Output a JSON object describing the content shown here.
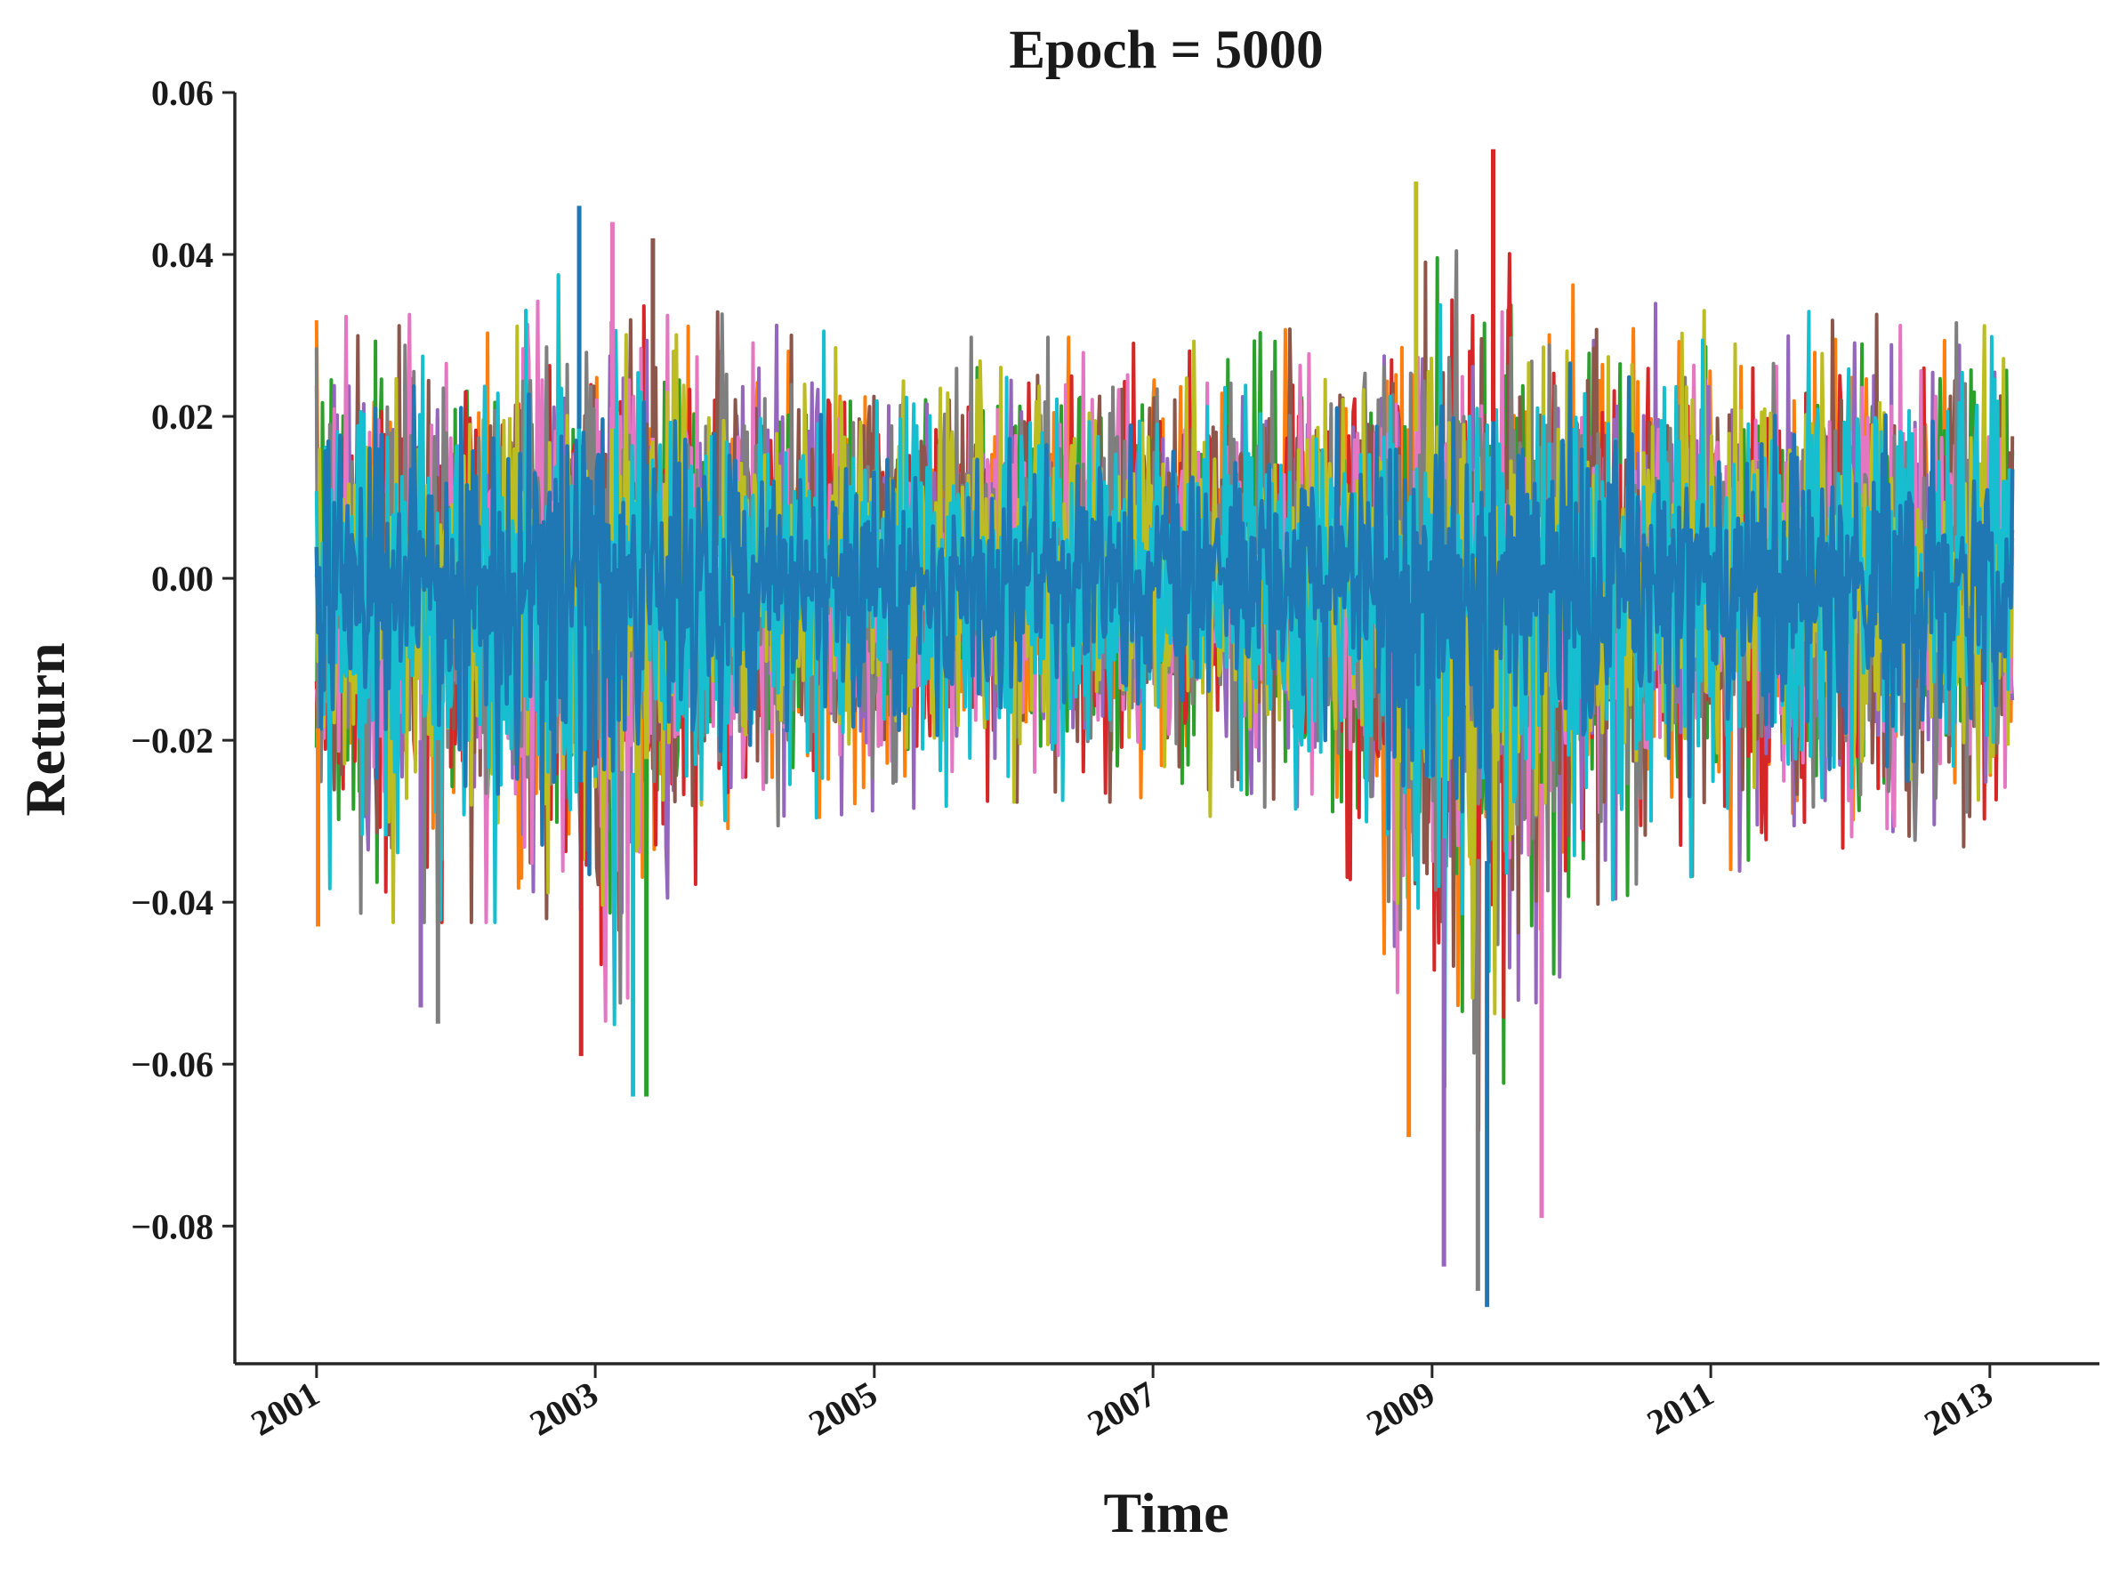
{
  "chart_data": {
    "type": "line",
    "title": "Epoch = 5000",
    "xlabel": "Time",
    "ylabel": "Return",
    "x_range": [
      "2000-06-01",
      "2013-10-15"
    ],
    "ylim": [
      -0.097,
      0.06
    ],
    "x_ticks": [
      {
        "date": "2001-01-01",
        "label": "2001"
      },
      {
        "date": "2003-01-01",
        "label": "2003"
      },
      {
        "date": "2005-01-01",
        "label": "2005"
      },
      {
        "date": "2007-01-01",
        "label": "2007"
      },
      {
        "date": "2009-01-01",
        "label": "2009"
      },
      {
        "date": "2011-01-01",
        "label": "2011"
      },
      {
        "date": "2013-01-01",
        "label": "2013"
      }
    ],
    "y_ticks": [
      {
        "value": 0.06,
        "label": "0.06"
      },
      {
        "value": 0.04,
        "label": "0.04"
      },
      {
        "value": 0.02,
        "label": "0.02"
      },
      {
        "value": 0.0,
        "label": "0.00"
      },
      {
        "value": -0.02,
        "label": "−0.02"
      },
      {
        "value": -0.04,
        "label": "−0.04"
      },
      {
        "value": -0.06,
        "label": "−0.06"
      },
      {
        "value": -0.08,
        "label": "−0.08"
      }
    ],
    "grid": false,
    "series_colors": [
      "#1f77b4",
      "#ff7f0e",
      "#2ca02c",
      "#d62728",
      "#9467bd",
      "#8c564b",
      "#e377c2",
      "#7f7f7f",
      "#bcbd22",
      "#17becf"
    ],
    "date_start": "2001-01-01",
    "date_end": "2013-03-01",
    "volatility_profile": [
      {
        "date": "2001-01-01",
        "upper": 0.03,
        "lower": -0.037
      },
      {
        "date": "2001-07-01",
        "upper": 0.031,
        "lower": -0.04
      },
      {
        "date": "2002-01-01",
        "upper": 0.03,
        "lower": -0.04
      },
      {
        "date": "2002-07-01",
        "upper": 0.031,
        "lower": -0.04
      },
      {
        "date": "2002-11-01",
        "upper": 0.037,
        "lower": -0.05
      },
      {
        "date": "2003-03-01",
        "upper": 0.037,
        "lower": -0.052
      },
      {
        "date": "2003-07-01",
        "upper": 0.034,
        "lower": -0.04
      },
      {
        "date": "2004-01-01",
        "upper": 0.03,
        "lower": -0.03
      },
      {
        "date": "2004-07-01",
        "upper": 0.029,
        "lower": -0.028
      },
      {
        "date": "2005-01-01",
        "upper": 0.028,
        "lower": -0.027
      },
      {
        "date": "2006-01-01",
        "upper": 0.028,
        "lower": -0.026
      },
      {
        "date": "2007-01-01",
        "upper": 0.028,
        "lower": -0.026
      },
      {
        "date": "2007-07-01",
        "upper": 0.028,
        "lower": -0.028
      },
      {
        "date": "2008-01-01",
        "upper": 0.029,
        "lower": -0.03
      },
      {
        "date": "2008-07-01",
        "upper": 0.031,
        "lower": -0.036
      },
      {
        "date": "2008-11-01",
        "upper": 0.036,
        "lower": -0.052
      },
      {
        "date": "2009-03-01",
        "upper": 0.038,
        "lower": -0.068
      },
      {
        "date": "2009-06-01",
        "upper": 0.039,
        "lower": -0.07
      },
      {
        "date": "2009-10-01",
        "upper": 0.036,
        "lower": -0.052
      },
      {
        "date": "2010-03-01",
        "upper": 0.033,
        "lower": -0.038
      },
      {
        "date": "2011-01-01",
        "upper": 0.031,
        "lower": -0.034
      },
      {
        "date": "2012-01-01",
        "upper": 0.031,
        "lower": -0.034
      },
      {
        "date": "2013-03-01",
        "upper": 0.029,
        "lower": -0.03
      }
    ],
    "extremes": [
      {
        "date": "2001-01-05",
        "value": -0.043
      },
      {
        "date": "2001-10-01",
        "value": -0.053
      },
      {
        "date": "2001-11-15",
        "value": -0.055
      },
      {
        "date": "2002-11-20",
        "value": 0.046
      },
      {
        "date": "2002-11-25",
        "value": -0.059
      },
      {
        "date": "2003-02-15",
        "value": 0.044
      },
      {
        "date": "2003-04-10",
        "value": -0.064
      },
      {
        "date": "2003-05-15",
        "value": -0.064
      },
      {
        "date": "2003-06-01",
        "value": 0.042
      },
      {
        "date": "2008-11-20",
        "value": 0.049
      },
      {
        "date": "2008-11-01",
        "value": -0.069
      },
      {
        "date": "2009-02-01",
        "value": -0.085
      },
      {
        "date": "2009-05-01",
        "value": -0.088
      },
      {
        "date": "2009-05-25",
        "value": -0.09
      },
      {
        "date": "2009-06-10",
        "value": 0.053
      },
      {
        "date": "2009-10-15",
        "value": -0.079
      }
    ]
  }
}
